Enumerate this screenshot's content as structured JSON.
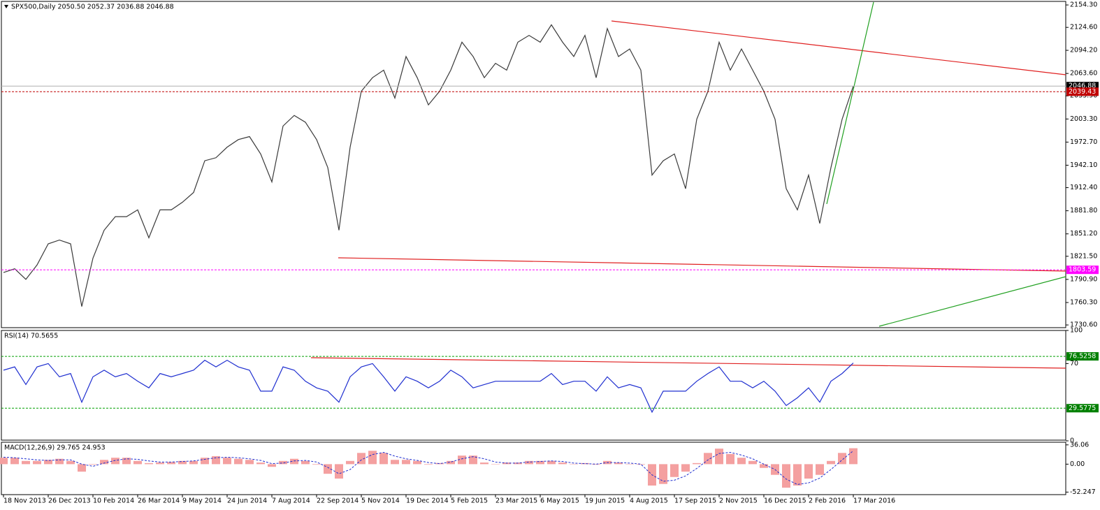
{
  "chart_data": [
    {
      "type": "line",
      "title": "SPX500,Daily 2050.50 2052.37 2036.88 2046.88",
      "color": "#3a3a3a",
      "values": [
        1800,
        1805,
        1791,
        1810,
        1838,
        1843,
        1838,
        1755,
        1819,
        1856,
        1874,
        1874,
        1883,
        1846,
        1883,
        1883,
        1893,
        1906,
        1948,
        1952,
        1966,
        1976,
        1980,
        1957,
        1920,
        1994,
        2008,
        1999,
        1976,
        1939,
        1856,
        1966,
        2040,
        2058,
        2068,
        2031,
        2086,
        2058,
        2022,
        2040,
        2068,
        2105,
        2086,
        2058,
        2077,
        2068,
        2105,
        2114,
        2105,
        2128,
        2105,
        2086,
        2114,
        2058,
        2123,
        2086,
        2096,
        2068,
        1929,
        1948,
        1957,
        1911,
        2003,
        2040,
        2105,
        2068,
        2096,
        2068,
        2040,
        2003,
        1911,
        1883,
        1929,
        1865,
        1939,
        2003,
        2046.88
      ],
      "ylim": [
        1727,
        2159
      ],
      "yticks": [
        {
          "value": 2154.3,
          "label": "2154.30"
        },
        {
          "value": 2124.6,
          "label": "2124.60"
        },
        {
          "value": 2094.2,
          "label": "2094.20"
        },
        {
          "value": 2063.6,
          "label": "2063.60"
        },
        {
          "value": 2033.9,
          "label": "2033.90"
        },
        {
          "value": 2003.3,
          "label": "2003.30"
        },
        {
          "value": 1972.7,
          "label": "1972.70"
        },
        {
          "value": 1942.1,
          "label": "1942.10"
        },
        {
          "value": 1912.4,
          "label": "1912.40"
        },
        {
          "value": 1881.8,
          "label": "1881.80"
        },
        {
          "value": 1851.2,
          "label": "1851.20"
        },
        {
          "value": 1821.5,
          "label": "1821.50"
        },
        {
          "value": 1790.9,
          "label": "1790.90"
        },
        {
          "value": 1760.3,
          "label": "1760.30"
        },
        {
          "value": 1730.6,
          "label": "1730.60"
        }
      ],
      "levels": [
        {
          "value": 2046.88,
          "color": "#b0b0b0",
          "label_bg": "#000000"
        },
        {
          "value": 2039.43,
          "color": "#c00000",
          "label_bg": "#c00000"
        },
        {
          "value": 1803.59,
          "color": "#ff00ff",
          "label_bg": "#ff00ff"
        }
      ]
    },
    {
      "type": "line",
      "title": "RSI(14) 70.5655",
      "color": "#1f2fd0",
      "values": [
        64,
        67,
        51,
        67,
        70,
        58,
        61,
        35,
        58,
        64,
        58,
        61,
        54,
        48,
        61,
        58,
        61,
        64,
        73,
        67,
        73,
        67,
        64,
        45,
        45,
        67,
        64,
        54,
        48,
        45,
        35,
        58,
        67,
        70,
        58,
        45,
        58,
        54,
        48,
        54,
        64,
        58,
        48,
        51,
        54,
        54,
        54,
        54,
        54,
        61,
        51,
        54,
        54,
        45,
        58,
        48,
        51,
        48,
        26,
        45,
        45,
        45,
        54,
        61,
        67,
        54,
        54,
        48,
        54,
        45,
        32,
        39,
        48,
        35,
        54,
        61,
        70.5655
      ],
      "ylim": [
        0,
        100
      ],
      "yticks": [
        100,
        70,
        0
      ],
      "levels": [
        {
          "value": 76.5258,
          "color": "#00a000",
          "label_bg": "#008000"
        },
        {
          "value": 29.5775,
          "color": "#00a000",
          "label_bg": "#008000"
        }
      ]
    },
    {
      "type": "macd",
      "title": "MACD(12,26,9) 29.765 24.953",
      "color": "#f4a0a0",
      "signal_color": "#1f2fd0",
      "values": [
        12,
        12,
        6,
        6,
        8,
        10,
        6,
        -14,
        -1,
        8,
        12,
        12,
        6,
        2,
        3,
        4,
        6,
        6,
        12,
        15,
        12,
        10,
        8,
        3,
        -5,
        6,
        10,
        6,
        -1,
        -18,
        -27,
        6,
        21,
        25,
        21,
        8,
        8,
        6,
        -1,
        2,
        6,
        16,
        16,
        3,
        0.5,
        3,
        3,
        6,
        6,
        6,
        3,
        0.5,
        2,
        -1,
        6,
        3,
        0.5,
        -1,
        -40,
        -37,
        -24,
        -14,
        2,
        21,
        29,
        19,
        12,
        6,
        -7,
        -20,
        -44,
        -40,
        -27,
        -20,
        6,
        21,
        29.765
      ],
      "signal": [
        13,
        12,
        10,
        8,
        7,
        8,
        8,
        0,
        -4,
        2,
        7,
        10,
        9,
        6,
        4,
        4,
        5,
        6,
        9,
        12,
        13,
        12,
        10,
        7,
        1,
        2,
        6,
        7,
        4,
        -6,
        -18,
        -10,
        8,
        18,
        22,
        15,
        10,
        7,
        3,
        1,
        4,
        10,
        14,
        10,
        4,
        2,
        2,
        4,
        5,
        6,
        5,
        2,
        1,
        0,
        3,
        3,
        2,
        0,
        -20,
        -32,
        -30,
        -22,
        -8,
        8,
        20,
        22,
        17,
        10,
        0,
        -10,
        -28,
        -38,
        -35,
        -26,
        -10,
        8,
        24.953
      ],
      "ylim": [
        -57,
        41
      ],
      "yticks": [
        36.06,
        {
          "value": 0,
          "label": "0.00"
        },
        -52.247
      ],
      "xtick_labels": [
        "18 Nov 2013",
        "26 Dec 2013",
        "10 Feb 2014",
        "26 Mar 2014",
        "9 May 2014",
        "24 Jun 2014",
        "7 Aug 2014",
        "22 Sep 2014",
        "5 Nov 2014",
        "19 Dec 2014",
        "5 Feb 2015",
        "23 Mar 2015",
        "6 May 2015",
        "19 Jun 2015",
        "4 Aug 2015",
        "17 Sep 2015",
        "2 Nov 2015",
        "16 Dec 2015",
        "2 Feb 2016",
        "17 Mar 2016"
      ]
    }
  ]
}
